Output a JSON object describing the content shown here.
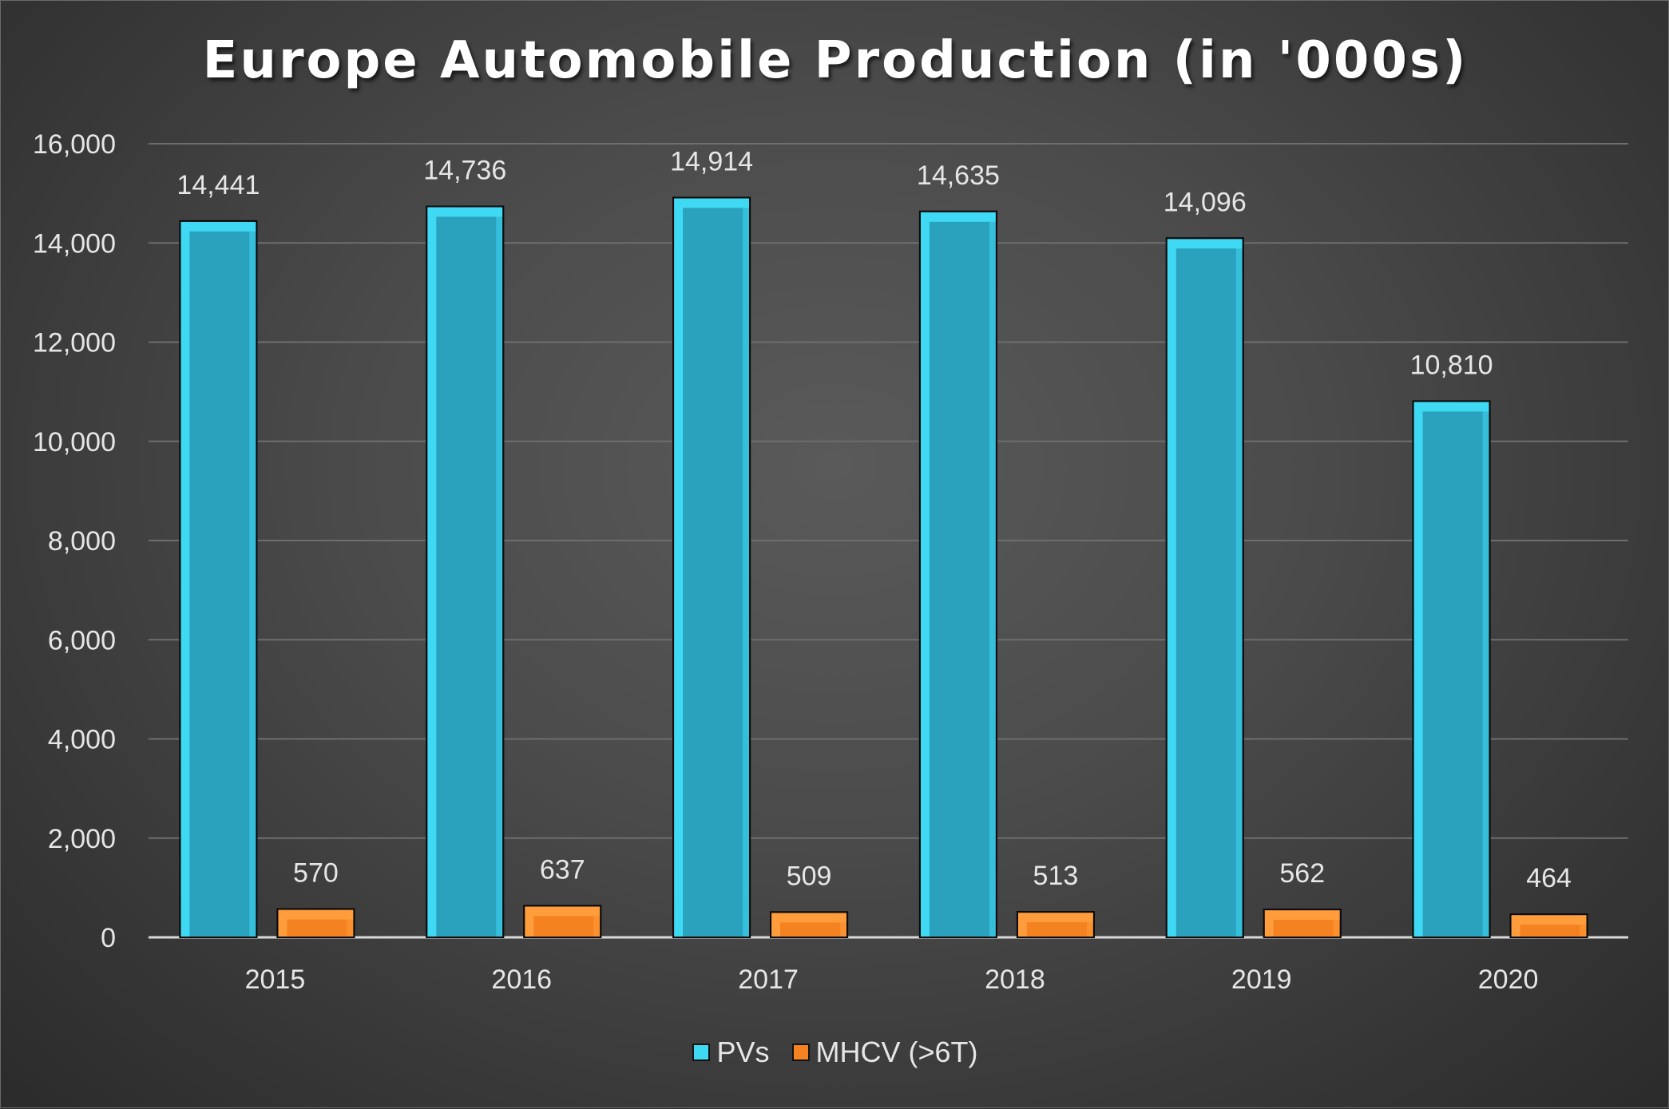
{
  "chart_data": {
    "type": "bar",
    "title": "Europe Automobile Production (in '000s)",
    "xlabel": "",
    "ylabel": "",
    "categories": [
      "2015",
      "2016",
      "2017",
      "2018",
      "2019",
      "2020"
    ],
    "series": [
      {
        "name": "PVs",
        "values": [
          14441,
          14736,
          14914,
          14635,
          14096,
          10810
        ],
        "color": "#2aa1bd",
        "edge_color": "#3fd9f4"
      },
      {
        "name": "MHCV (>6T)",
        "values": [
          570,
          637,
          509,
          513,
          562,
          464
        ],
        "color": "#f58220",
        "edge_color": "#ff9d3c"
      }
    ],
    "data_labels": [
      [
        "14,441",
        "14,736",
        "14,914",
        "14,635",
        "14,096",
        "10,810"
      ],
      [
        "570",
        "637",
        "509",
        "513",
        "562",
        "464"
      ]
    ],
    "yticks": [
      "0",
      "2,000",
      "4,000",
      "6,000",
      "8,000",
      "10,000",
      "12,000",
      "14,000",
      "16,000"
    ],
    "ylim": [
      0,
      16000
    ],
    "grid": true,
    "legend_position": "bottom"
  }
}
